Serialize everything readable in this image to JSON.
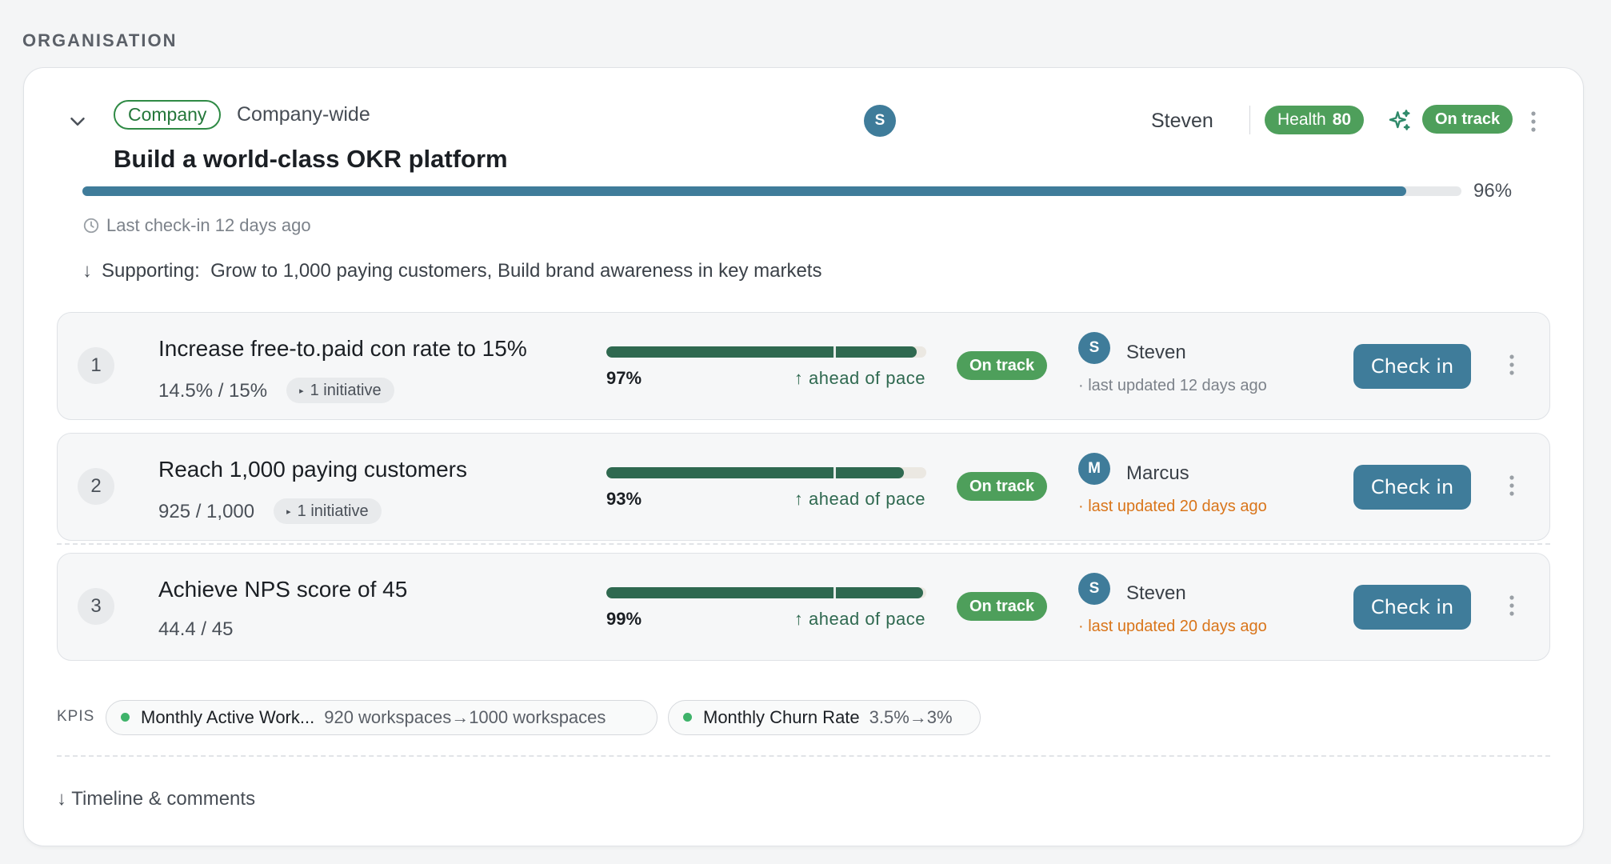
{
  "section_label": "ORGANISATION",
  "objective": {
    "tag": "Company",
    "scope": "Company-wide",
    "title": "Build a world-class OKR platform",
    "owner_initial": "S",
    "owner_name": "Steven",
    "health_label": "Health",
    "health_value": "80",
    "status": "On track",
    "progress_label": "96%",
    "progress": 0.96,
    "last_checkin": "Last check-in 12 days ago",
    "supporting_label": "Supporting:",
    "supporting_items": "Grow to 1,000 paying customers, Build brand awareness in key markets"
  },
  "key_results": [
    {
      "number": "1",
      "title": "Increase free-to.paid con rate to 15%",
      "value": "14.5% / 15%",
      "initiative": "1 initiative",
      "progress": 0.97,
      "percent": "97%",
      "pace": "↑ ahead of pace",
      "status": "On track",
      "owner_initial": "S",
      "owner_name": "Steven",
      "updated": "· last updated 12 days ago",
      "stale": false,
      "checkin_label": "Check in"
    },
    {
      "number": "2",
      "title": "Reach 1,000 paying customers",
      "value": "925 / 1,000",
      "initiative": "1 initiative",
      "progress": 0.93,
      "percent": "93%",
      "pace": "↑ ahead of pace",
      "status": "On track",
      "owner_initial": "M",
      "owner_name": "Marcus",
      "updated": "· last updated 20 days ago",
      "stale": true,
      "checkin_label": "Check in"
    },
    {
      "number": "3",
      "title": "Achieve NPS score of 45",
      "value": "44.4 / 45",
      "initiative": "",
      "progress": 0.99,
      "percent": "99%",
      "pace": "↑ ahead of pace",
      "status": "On track",
      "owner_initial": "S",
      "owner_name": "Steven",
      "updated": "· last updated 20 days ago",
      "stale": true,
      "checkin_label": "Check in"
    }
  ],
  "kpis": {
    "label": "KPIS",
    "items": [
      {
        "name": "Monthly Active Work...",
        "range": "920 workspaces→1000 workspaces"
      },
      {
        "name": "Monthly Churn Rate",
        "range": "3.5%→3%"
      }
    ]
  },
  "timeline_label": "↓ Timeline & comments",
  "colors": {
    "accent": "#3f7c9a",
    "status_green": "#4e9f5b",
    "progress_green": "#2f6950",
    "stale_orange": "#d9751a",
    "kpi_dot": "#3fb36a"
  },
  "icons": [
    "chevron-down-icon",
    "sparkle-icon",
    "kebab-icon",
    "clock-icon",
    "arrow-down-icon"
  ]
}
